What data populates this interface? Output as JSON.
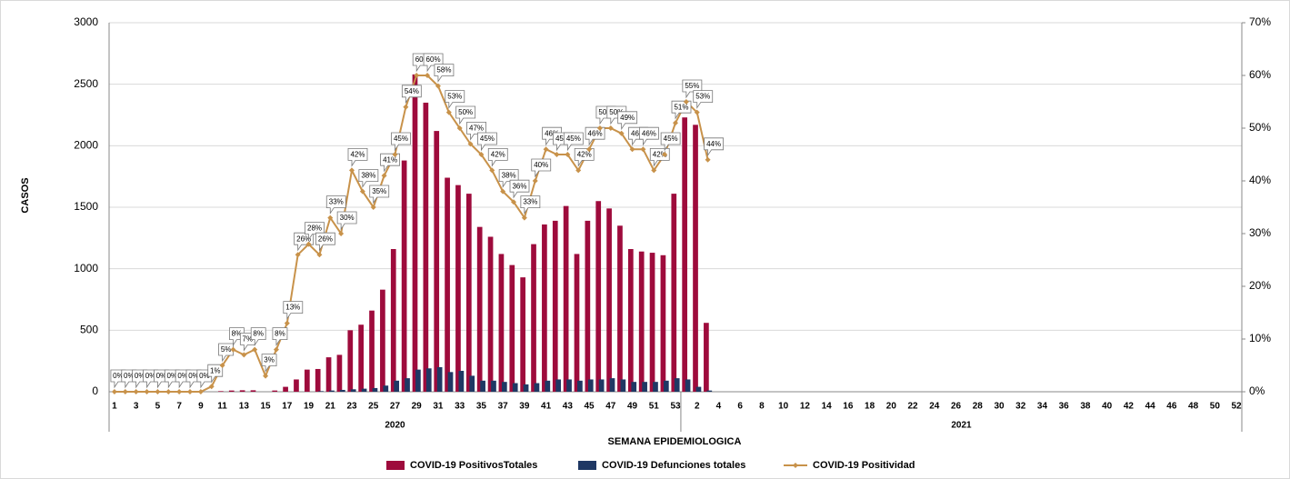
{
  "chart_data": {
    "type": "bar-line",
    "x_label": "SEMANA EPIDEMIOLOGICA",
    "y_label": "CASOS",
    "categories": [
      "1",
      null,
      "3",
      null,
      "5",
      null,
      "7",
      null,
      "9",
      null,
      "11",
      null,
      "13",
      null,
      "15",
      null,
      "17",
      null,
      "19",
      null,
      "21",
      null,
      "23",
      null,
      "25",
      null,
      "27",
      null,
      "29",
      null,
      "31",
      null,
      "33",
      null,
      "35",
      null,
      "37",
      null,
      "39",
      null,
      "41",
      null,
      "43",
      null,
      "45",
      null,
      "47",
      null,
      "49",
      null,
      "51",
      null,
      "53",
      null,
      "2",
      null,
      "4",
      null,
      "6",
      null,
      "8",
      null,
      "10",
      null,
      "12",
      null,
      "14",
      null,
      "16",
      null,
      "18",
      null,
      "20",
      null,
      "22",
      null,
      "24",
      null,
      "26",
      null,
      "28",
      null,
      "30",
      null,
      "32",
      null,
      "34",
      null,
      "36",
      null,
      "38",
      null,
      "40",
      null,
      "42",
      null,
      "44",
      null,
      "46",
      null,
      "48",
      null,
      "50",
      null,
      "52"
    ],
    "groups": [
      {
        "label": "2020",
        "size": 53
      },
      {
        "label": "2021",
        "size": 52
      }
    ],
    "ylim": [
      0,
      3000
    ],
    "yticks": [
      0,
      500,
      1000,
      1500,
      2000,
      2500,
      3000
    ],
    "y2lim": [
      0,
      70
    ],
    "y2ticks": [
      {
        "value": 0,
        "label": "0%"
      },
      {
        "value": 10,
        "label": "10%"
      },
      {
        "value": 20,
        "label": "20%"
      },
      {
        "value": 30,
        "label": "30%"
      },
      {
        "value": 40,
        "label": "40%"
      },
      {
        "value": 50,
        "label": "50%"
      },
      {
        "value": 60,
        "label": "60%"
      },
      {
        "value": 70,
        "label": "70%"
      }
    ],
    "grid": true,
    "legend": "bottom",
    "series": [
      {
        "name": "COVID-19 PositivosTotales",
        "color": "#9e0b3c",
        "kind": "bar",
        "values": [
          0,
          0,
          0,
          0,
          0,
          0,
          0,
          0,
          0,
          0,
          5,
          10,
          12,
          12,
          0,
          10,
          40,
          100,
          180,
          185,
          280,
          300,
          500,
          545,
          660,
          830,
          1160,
          1880,
          2580,
          2350,
          2120,
          1740,
          1680,
          1610,
          1340,
          1260,
          1120,
          1030,
          930,
          1200,
          1360,
          1390,
          1510,
          1120,
          1390,
          1550,
          1490,
          1350,
          1160,
          1140,
          1130,
          1110,
          1610,
          2230,
          2170,
          560,
          null,
          null,
          null,
          null,
          null,
          null,
          null,
          null,
          null,
          null,
          null,
          null,
          null,
          null,
          null,
          null,
          null,
          null,
          null,
          null,
          null,
          null,
          null,
          null,
          null,
          null,
          null,
          null,
          null,
          null,
          null,
          null,
          null,
          null,
          null,
          null,
          null,
          null,
          null,
          null,
          null,
          null,
          null,
          null,
          null,
          null,
          null,
          null,
          null
        ]
      },
      {
        "name": "COVID-19 Defunciones totales",
        "color": "#1f3864",
        "kind": "bar",
        "values": [
          0,
          0,
          0,
          0,
          0,
          0,
          0,
          0,
          0,
          0,
          0,
          0,
          0,
          0,
          0,
          0,
          0,
          0,
          0,
          5,
          10,
          15,
          20,
          25,
          30,
          50,
          90,
          110,
          180,
          190,
          200,
          160,
          170,
          130,
          90,
          90,
          80,
          70,
          60,
          70,
          90,
          100,
          100,
          90,
          100,
          100,
          110,
          100,
          80,
          80,
          80,
          90,
          110,
          100,
          40,
          10,
          null,
          null,
          null,
          null,
          null,
          null,
          null,
          null,
          null,
          null,
          null,
          null,
          null,
          null,
          null,
          null,
          null,
          null,
          null,
          null,
          null,
          null,
          null,
          null,
          null,
          null,
          null,
          null,
          null,
          null,
          null,
          null,
          null,
          null,
          null,
          null,
          null,
          null,
          null,
          null,
          null,
          null,
          null,
          null,
          null,
          null,
          null,
          null,
          null
        ]
      },
      {
        "name": "COVID-19 Positividad",
        "color": "#c8924a",
        "kind": "line",
        "axis": "y2",
        "values": [
          0,
          0,
          0,
          0,
          0,
          0,
          0,
          0,
          0,
          1,
          5,
          8,
          7,
          8,
          3,
          8,
          13,
          26,
          28,
          26,
          33,
          30,
          42,
          38,
          35,
          41,
          45,
          54,
          60,
          60,
          58,
          53,
          50,
          47,
          45,
          42,
          38,
          36,
          33,
          40,
          46,
          45,
          45,
          42,
          46,
          50,
          50,
          49,
          46,
          46,
          42,
          45,
          51,
          55,
          53,
          44,
          null,
          null,
          null,
          null,
          null,
          null,
          null,
          null,
          null,
          null,
          null,
          null,
          null,
          null,
          null,
          null,
          null,
          null,
          null,
          null,
          null,
          null,
          null,
          null,
          null,
          null,
          null,
          null,
          null,
          null,
          null,
          null,
          null,
          null,
          null,
          null,
          null,
          null,
          null,
          null,
          null,
          null,
          null,
          null,
          null,
          null,
          null,
          null,
          null
        ],
        "value_labels": [
          "0%",
          "0%",
          "0%",
          "0%",
          "0%",
          "0%",
          "0%",
          "0%",
          "0%",
          "1%",
          "5%",
          "8%",
          "7%",
          "8%",
          "3%",
          "8%",
          "13%",
          "26%",
          "28%",
          "26%",
          "33%",
          "30%",
          "42%",
          "38%",
          "35%",
          "41%",
          "45%",
          "54%",
          "60%",
          "60%",
          "58%",
          "53%",
          "50%",
          "47%",
          "45%",
          "42%",
          "38%",
          "36%",
          "33%",
          "40%",
          "46%",
          "45%",
          "45%",
          "42%",
          "46%",
          "50%",
          "50%",
          "49%",
          "46%",
          "46%",
          "42%",
          "45%",
          "51%",
          "55%",
          "53%",
          "44%",
          null,
          null,
          null,
          null,
          null,
          null,
          null,
          null,
          null,
          null,
          null,
          null,
          null,
          null,
          null,
          null,
          null,
          null,
          null,
          null,
          null,
          null,
          null,
          null,
          null,
          null,
          null,
          null,
          null,
          null,
          null,
          null,
          null,
          null,
          null,
          null,
          null,
          null,
          null,
          null,
          null,
          null,
          null,
          null,
          null,
          null,
          null,
          null,
          null
        ]
      }
    ]
  }
}
